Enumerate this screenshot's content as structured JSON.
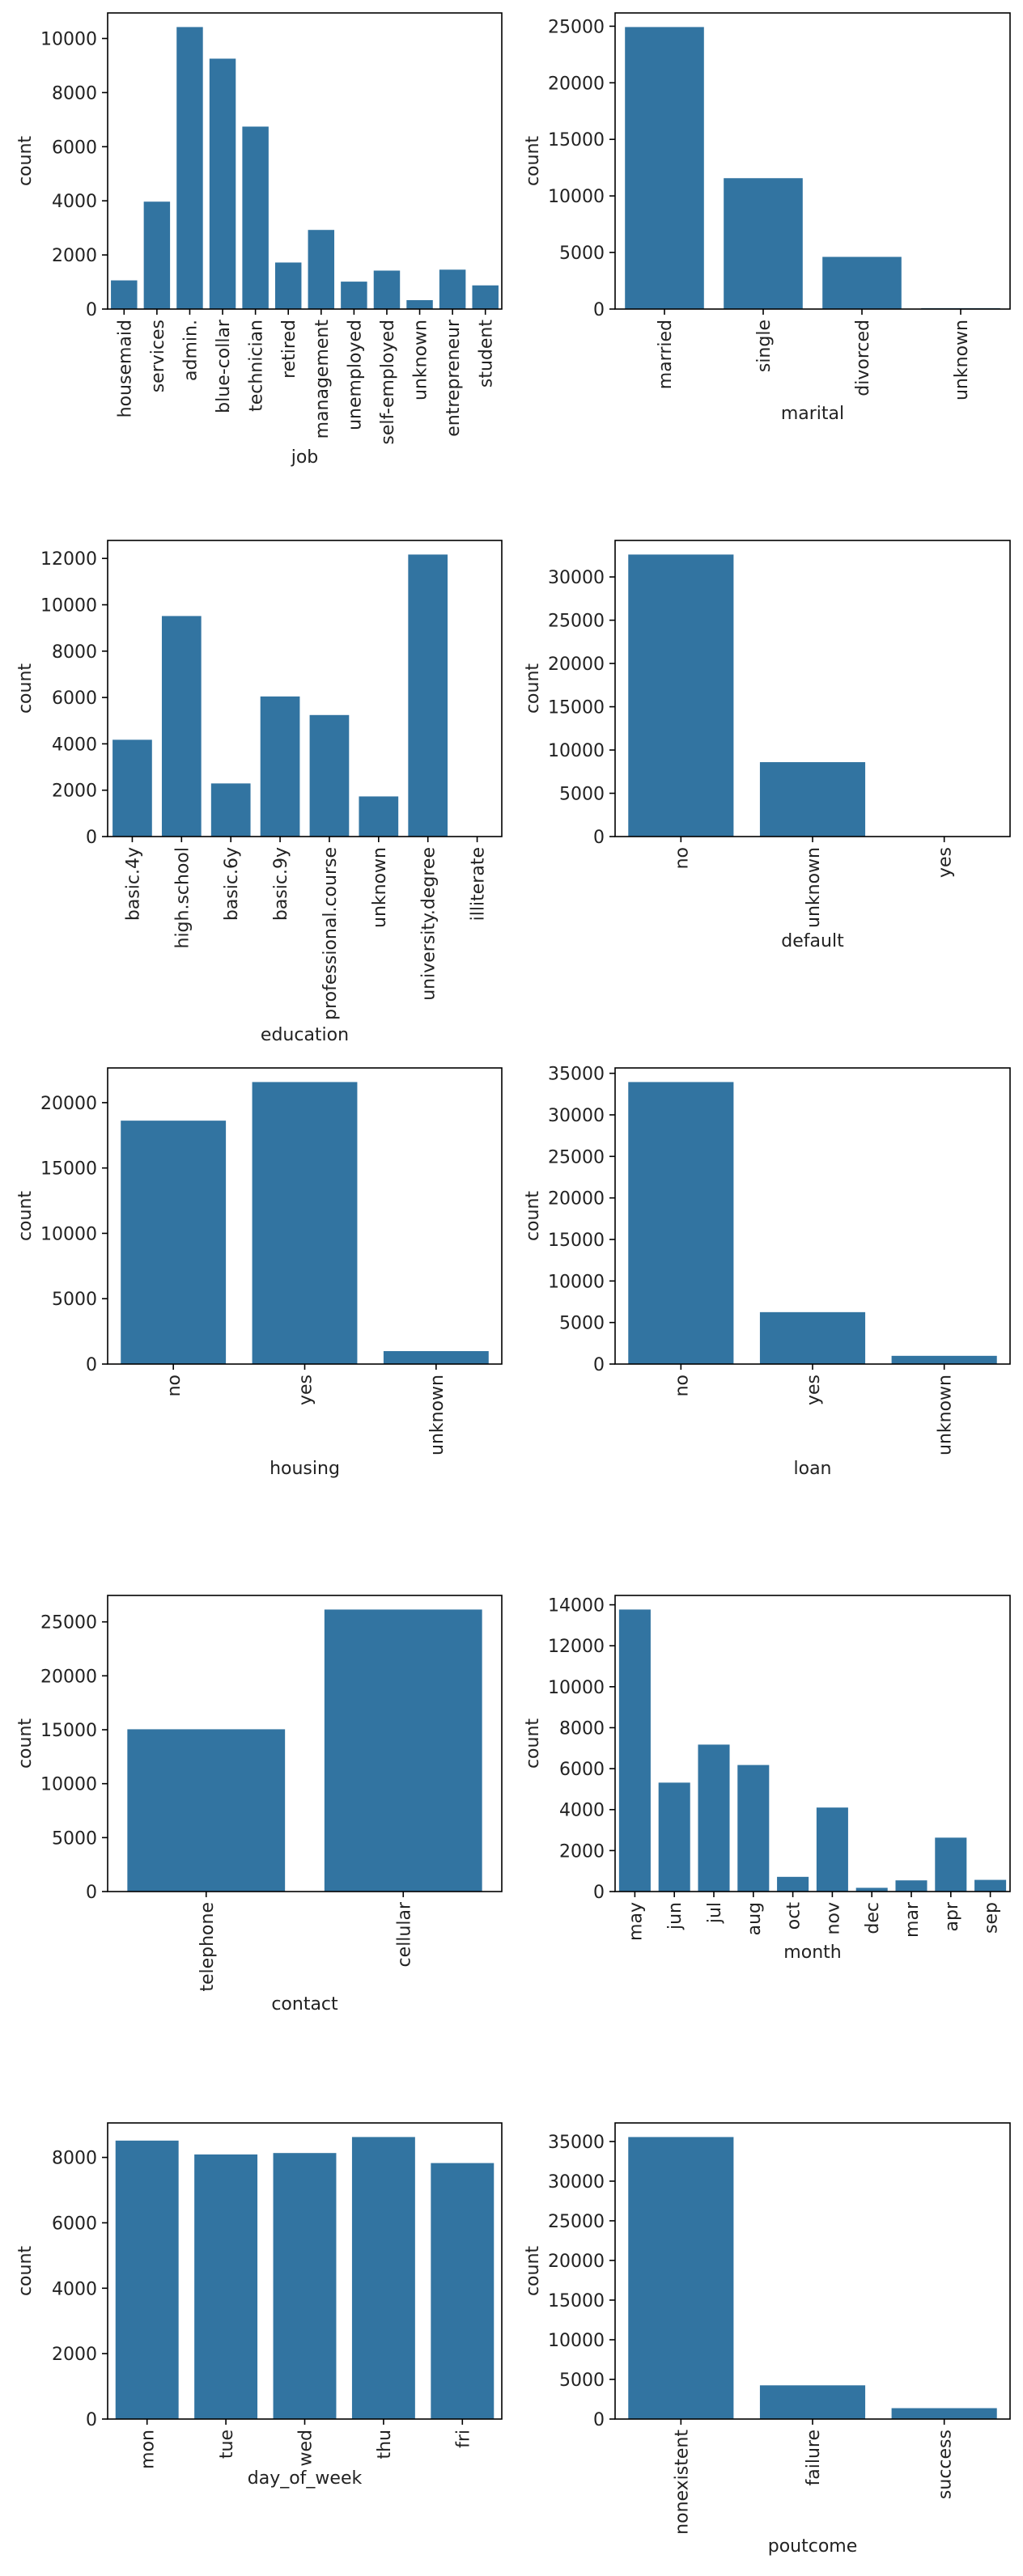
{
  "chart_data": [
    {
      "type": "bar",
      "xlabel": "job",
      "ylabel": "count",
      "categories": [
        "housemaid",
        "services",
        "admin.",
        "blue-collar",
        "technician",
        "retired",
        "management",
        "unemployed",
        "self-employed",
        "unknown",
        "entrepreneur",
        "student"
      ],
      "values": [
        1060,
        3969,
        10422,
        9254,
        6743,
        1720,
        2924,
        1014,
        1421,
        330,
        1456,
        875
      ],
      "ylim": [
        0,
        10943
      ],
      "yticks": [
        0,
        2000,
        4000,
        6000,
        8000,
        10000
      ],
      "yticklabels": [
        "0",
        "2000",
        "4000",
        "6000",
        "8000",
        "10000"
      ],
      "grid": false,
      "color": "#3274a1"
    },
    {
      "type": "bar",
      "xlabel": "marital",
      "ylabel": "count",
      "categories": [
        "married",
        "single",
        "divorced",
        "unknown"
      ],
      "values": [
        24928,
        11568,
        4612,
        80
      ],
      "ylim": [
        0,
        26174
      ],
      "yticks": [
        0,
        5000,
        10000,
        15000,
        20000,
        25000
      ],
      "yticklabels": [
        "0",
        "5000",
        "10000",
        "15000",
        "20000",
        "25000"
      ],
      "grid": false,
      "color": "#3274a1"
    },
    {
      "type": "bar",
      "xlabel": "education",
      "ylabel": "count",
      "categories": [
        "basic.4y",
        "high.school",
        "basic.6y",
        "basic.9y",
        "professional.course",
        "unknown",
        "university.degree",
        "illiterate"
      ],
      "values": [
        4176,
        9515,
        2292,
        6045,
        5243,
        1731,
        12168,
        18
      ],
      "ylim": [
        0,
        12776
      ],
      "yticks": [
        0,
        2000,
        4000,
        6000,
        8000,
        10000,
        12000
      ],
      "yticklabels": [
        "0",
        "2000",
        "4000",
        "6000",
        "8000",
        "10000",
        "12000"
      ],
      "grid": false,
      "color": "#3274a1"
    },
    {
      "type": "bar",
      "xlabel": "default",
      "ylabel": "count",
      "categories": [
        "no",
        "unknown",
        "yes"
      ],
      "values": [
        32588,
        8597,
        3
      ],
      "ylim": [
        0,
        34217
      ],
      "yticks": [
        0,
        5000,
        10000,
        15000,
        20000,
        25000,
        30000
      ],
      "yticklabels": [
        "0",
        "5000",
        "10000",
        "15000",
        "20000",
        "25000",
        "30000"
      ],
      "grid": false,
      "color": "#3274a1"
    },
    {
      "type": "bar",
      "xlabel": "housing",
      "ylabel": "count",
      "categories": [
        "no",
        "yes",
        "unknown"
      ],
      "values": [
        18622,
        21576,
        990
      ],
      "ylim": [
        0,
        22655
      ],
      "yticks": [
        0,
        5000,
        10000,
        15000,
        20000
      ],
      "yticklabels": [
        "0",
        "5000",
        "10000",
        "15000",
        "20000"
      ],
      "grid": false,
      "color": "#3274a1"
    },
    {
      "type": "bar",
      "xlabel": "loan",
      "ylabel": "count",
      "categories": [
        "no",
        "yes",
        "unknown"
      ],
      "values": [
        33950,
        6248,
        990
      ],
      "ylim": [
        0,
        35648
      ],
      "yticks": [
        0,
        5000,
        10000,
        15000,
        20000,
        25000,
        30000,
        35000
      ],
      "yticklabels": [
        "0",
        "5000",
        "10000",
        "15000",
        "20000",
        "25000",
        "30000",
        "35000"
      ],
      "grid": false,
      "color": "#3274a1"
    },
    {
      "type": "bar",
      "xlabel": "contact",
      "ylabel": "count",
      "categories": [
        "telephone",
        "cellular"
      ],
      "values": [
        15044,
        26144
      ],
      "ylim": [
        0,
        27451
      ],
      "yticks": [
        0,
        5000,
        10000,
        15000,
        20000,
        25000
      ],
      "yticklabels": [
        "0",
        "5000",
        "10000",
        "15000",
        "20000",
        "25000"
      ],
      "grid": false,
      "color": "#3274a1"
    },
    {
      "type": "bar",
      "xlabel": "month",
      "ylabel": "count",
      "categories": [
        "may",
        "jun",
        "jul",
        "aug",
        "oct",
        "nov",
        "dec",
        "mar",
        "apr",
        "sep"
      ],
      "values": [
        13769,
        5318,
        7174,
        6178,
        718,
        4101,
        182,
        546,
        2632,
        570
      ],
      "ylim": [
        0,
        14457
      ],
      "yticks": [
        0,
        2000,
        4000,
        6000,
        8000,
        10000,
        12000,
        14000
      ],
      "yticklabels": [
        "0",
        "2000",
        "4000",
        "6000",
        "8000",
        "10000",
        "12000",
        "14000"
      ],
      "grid": false,
      "color": "#3274a1"
    },
    {
      "type": "bar",
      "xlabel": "day_of_week",
      "ylabel": "count",
      "categories": [
        "mon",
        "tue",
        "wed",
        "thu",
        "fri"
      ],
      "values": [
        8514,
        8090,
        8134,
        8623,
        7827
      ],
      "ylim": [
        0,
        9054
      ],
      "yticks": [
        0,
        2000,
        4000,
        6000,
        8000
      ],
      "yticklabels": [
        "0",
        "2000",
        "4000",
        "6000",
        "8000"
      ],
      "grid": false,
      "color": "#3274a1"
    },
    {
      "type": "bar",
      "xlabel": "poutcome",
      "ylabel": "count",
      "categories": [
        "nonexistent",
        "failure",
        "success"
      ],
      "values": [
        35563,
        4252,
        1373
      ],
      "ylim": [
        0,
        37341
      ],
      "yticks": [
        0,
        5000,
        10000,
        15000,
        20000,
        25000,
        30000,
        35000
      ],
      "yticklabels": [
        "0",
        "5000",
        "10000",
        "15000",
        "20000",
        "25000",
        "30000",
        "35000"
      ],
      "grid": false,
      "color": "#3274a1"
    }
  ]
}
